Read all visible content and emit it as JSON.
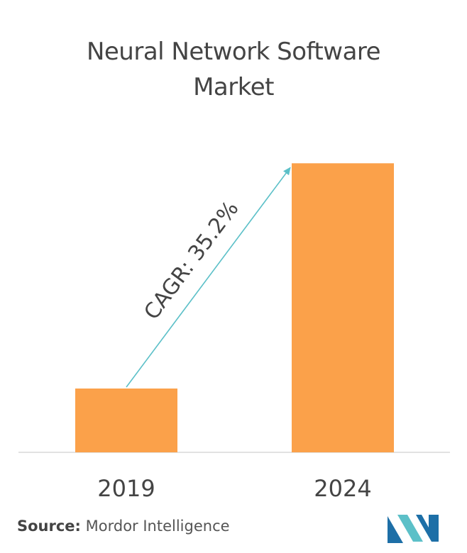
{
  "chart_data": {
    "type": "bar",
    "title_lines": [
      "Neural Network Software",
      "Market"
    ],
    "categories": [
      "2019",
      "2024"
    ],
    "values": [
      1,
      4.53
    ],
    "ylim": [
      0,
      5
    ],
    "grid": false,
    "bar_color": "#fba14a",
    "annotation": "CAGR: 35.2%",
    "arrow_color": "#5cc0c8"
  },
  "footer": {
    "source_label": "Source:",
    "source_name": "Mordor Intelligence"
  },
  "logo": {
    "icon": "mordor-intelligence-logo",
    "colors": [
      "#1d6fa7",
      "#5cc0c8"
    ]
  }
}
